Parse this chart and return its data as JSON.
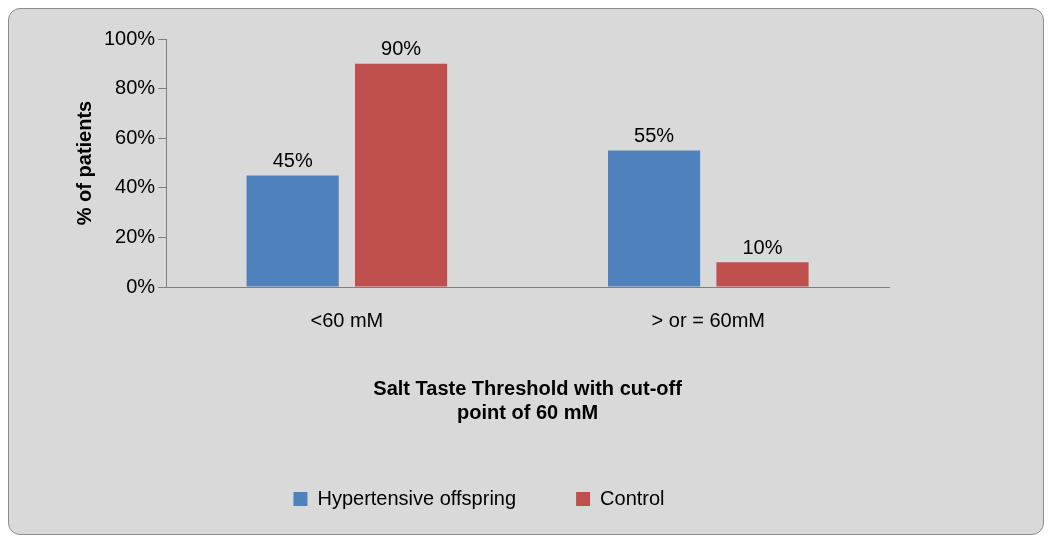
{
  "chart_data": {
    "type": "bar",
    "xlabel": "Salt Taste Threshold with cut-off point of 60 mM",
    "ylabel": "% of patients",
    "categories": [
      "<60 mM",
      "> or = 60mM"
    ],
    "series": [
      {
        "name": "Hypertensive offspring",
        "color": "#4f81bd",
        "values": [
          45,
          55
        ],
        "value_labels": [
          "45%",
          "55%"
        ]
      },
      {
        "name": "Control",
        "color": "#c0504d",
        "values": [
          90,
          10
        ],
        "value_labels": [
          "90%",
          "10%"
        ]
      }
    ],
    "ylim": [
      0,
      100
    ],
    "yticks": [
      {
        "value": 0,
        "label": "0%"
      },
      {
        "value": 20,
        "label": "20%"
      },
      {
        "value": 40,
        "label": "40%"
      },
      {
        "value": 60,
        "label": "60%"
      },
      {
        "value": 80,
        "label": "80%"
      },
      {
        "value": 100,
        "label": "100%"
      }
    ],
    "grid": false,
    "legend": "bottom"
  }
}
